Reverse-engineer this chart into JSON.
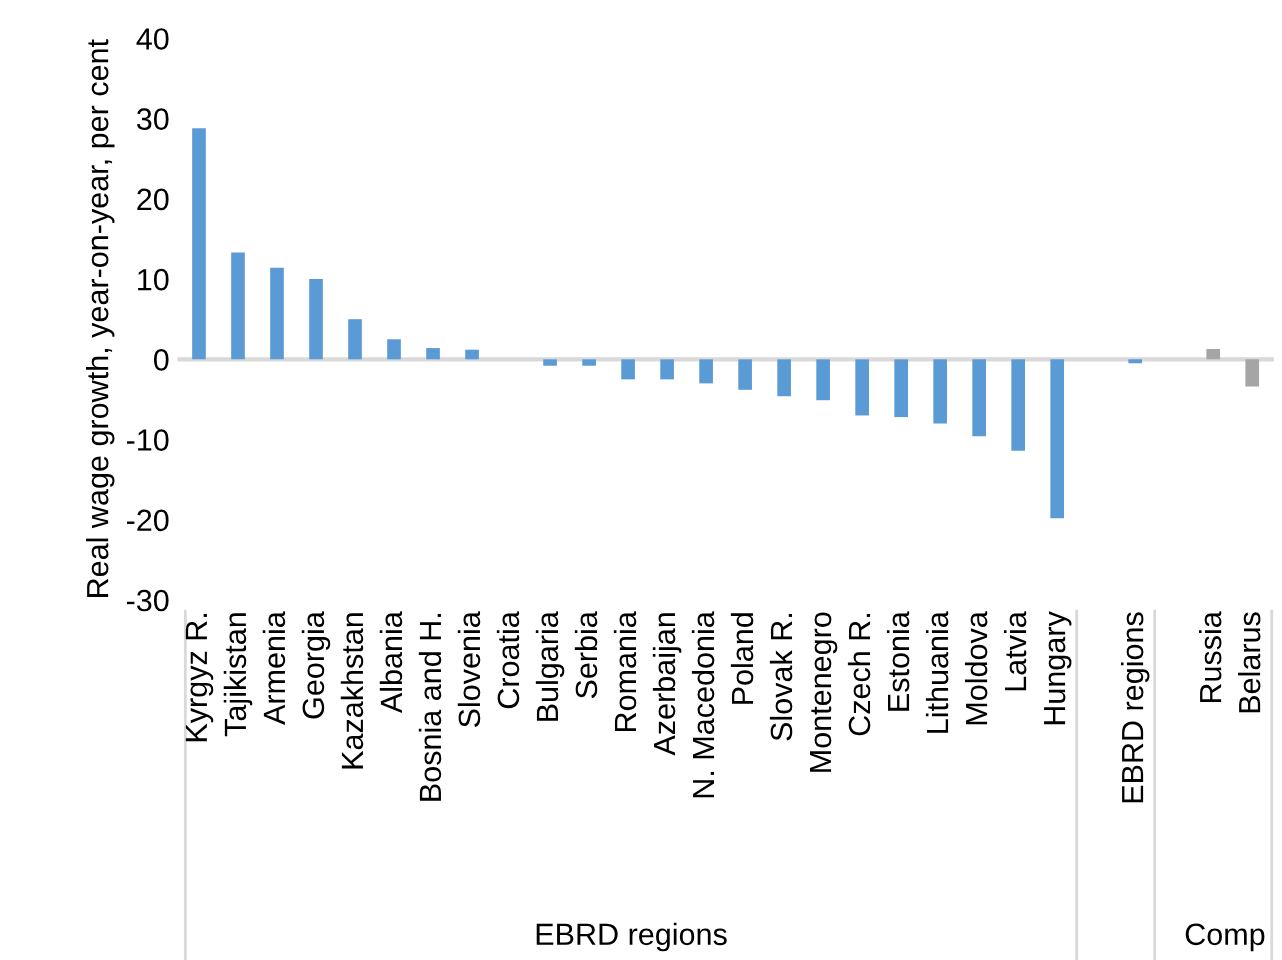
{
  "chart_data": {
    "type": "bar",
    "ylabel": "Real wage growth, year-on-year, per cent",
    "categories": [
      "Kyrgyz R.",
      "Tajikistan",
      "Armenia",
      "Georgia",
      "Kazakhstan",
      "Albania",
      "Bosnia and H.",
      "Slovenia",
      "Croatia",
      "Bulgaria",
      "Serbia",
      "Romania",
      "Azerbaijan",
      "N. Macedonia",
      "Poland",
      "Slovak R.",
      "Montenegro",
      "Czech R.",
      "Estonia",
      "Lithuania",
      "Moldova",
      "Latvia",
      "Hungary",
      null,
      "EBRD regions",
      null,
      "Russia",
      "Belarus"
    ],
    "values": [
      28.8,
      13.3,
      11.4,
      10,
      5,
      2.5,
      1.4,
      1.2,
      0,
      -0.8,
      -0.8,
      -2.5,
      -2.5,
      -3,
      -3.8,
      -4.6,
      -5.1,
      -7,
      -7.2,
      -8,
      -9.6,
      -11.4,
      -19.8,
      null,
      -0.5,
      null,
      1.3,
      -3.4
    ],
    "colors": [
      "#5b9bd5",
      "#5b9bd5",
      "#5b9bd5",
      "#5b9bd5",
      "#5b9bd5",
      "#5b9bd5",
      "#5b9bd5",
      "#5b9bd5",
      "#5b9bd5",
      "#5b9bd5",
      "#5b9bd5",
      "#5b9bd5",
      "#5b9bd5",
      "#5b9bd5",
      "#5b9bd5",
      "#5b9bd5",
      "#5b9bd5",
      "#5b9bd5",
      "#5b9bd5",
      "#5b9bd5",
      "#5b9bd5",
      "#5b9bd5",
      "#5b9bd5",
      "#5b9bd5",
      "#5b9bd5",
      "#a5a5a5",
      "#a5a5a5",
      "#a5a5a5"
    ],
    "ylim": [
      -30,
      40
    ],
    "yticks": [
      -30,
      -20,
      -10,
      0,
      10,
      20,
      30,
      40
    ],
    "annotations": [
      "EBRD regions",
      "Comp"
    ]
  }
}
